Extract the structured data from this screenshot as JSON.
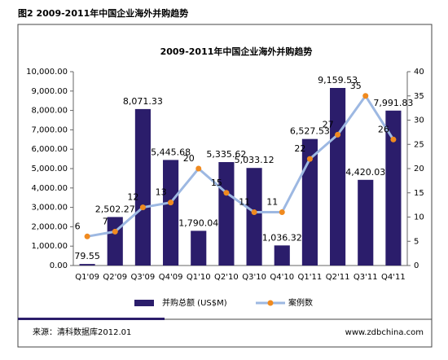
{
  "caption": "图2 2009-2011年中国企业海外并购趋势",
  "footer": {
    "source": "来源：清科数据库2012.01",
    "website": "www.zdbchina.com"
  },
  "chart_data": {
    "type": "bar_line",
    "title": "2009-2011年中国企业海外并购趋势",
    "categories": [
      "Q1'09",
      "Q2'09",
      "Q3'09",
      "Q4'09",
      "Q1'10",
      "Q2'10",
      "Q3'10",
      "Q4'10",
      "Q1'11",
      "Q2'11",
      "Q3'11",
      "Q4'11"
    ],
    "series": [
      {
        "name": "并购总额 (US$M)",
        "type": "bar",
        "color": "#2b1d6b",
        "values": [
          79.55,
          2502.27,
          8071.33,
          5445.68,
          1790.04,
          5335.62,
          5033.12,
          1036.32,
          6527.53,
          9159.53,
          4420.03,
          7991.83
        ],
        "value_labels": [
          "79.55",
          "2,502.27",
          "8,071.33",
          "5,445.68",
          "1,790.04",
          "5,335.62",
          "5,033.12",
          "1,036.32",
          "6,527.53",
          "9,159.53",
          "4,420.03",
          "7,991.83"
        ]
      },
      {
        "name": "案例数",
        "type": "line",
        "axis": "y2",
        "color": "#9db8e2",
        "marker_color": "#f08a1f",
        "values": [
          6,
          7,
          12,
          13,
          20,
          15,
          11,
          11,
          22,
          27,
          35,
          26
        ]
      }
    ],
    "ylim": [
      0,
      10000
    ],
    "yticks": [
      {
        "value": 0,
        "label": "0.00"
      },
      {
        "value": 1000,
        "label": "1,000.00"
      },
      {
        "value": 2000,
        "label": "2,000.00"
      },
      {
        "value": 3000,
        "label": "3,000.00"
      },
      {
        "value": 4000,
        "label": "4,000.00"
      },
      {
        "value": 5000,
        "label": "5,000.00"
      },
      {
        "value": 6000,
        "label": "6,000.00"
      },
      {
        "value": 7000,
        "label": "7,000.00"
      },
      {
        "value": 8000,
        "label": "8,000.00"
      },
      {
        "value": 9000,
        "label": "9,000.00"
      },
      {
        "value": 10000,
        "label": "10,000.00"
      }
    ],
    "y2lim": [
      0,
      40
    ],
    "y2ticks": [
      0,
      5,
      10,
      15,
      20,
      25,
      30,
      35,
      40
    ],
    "grid": false
  }
}
